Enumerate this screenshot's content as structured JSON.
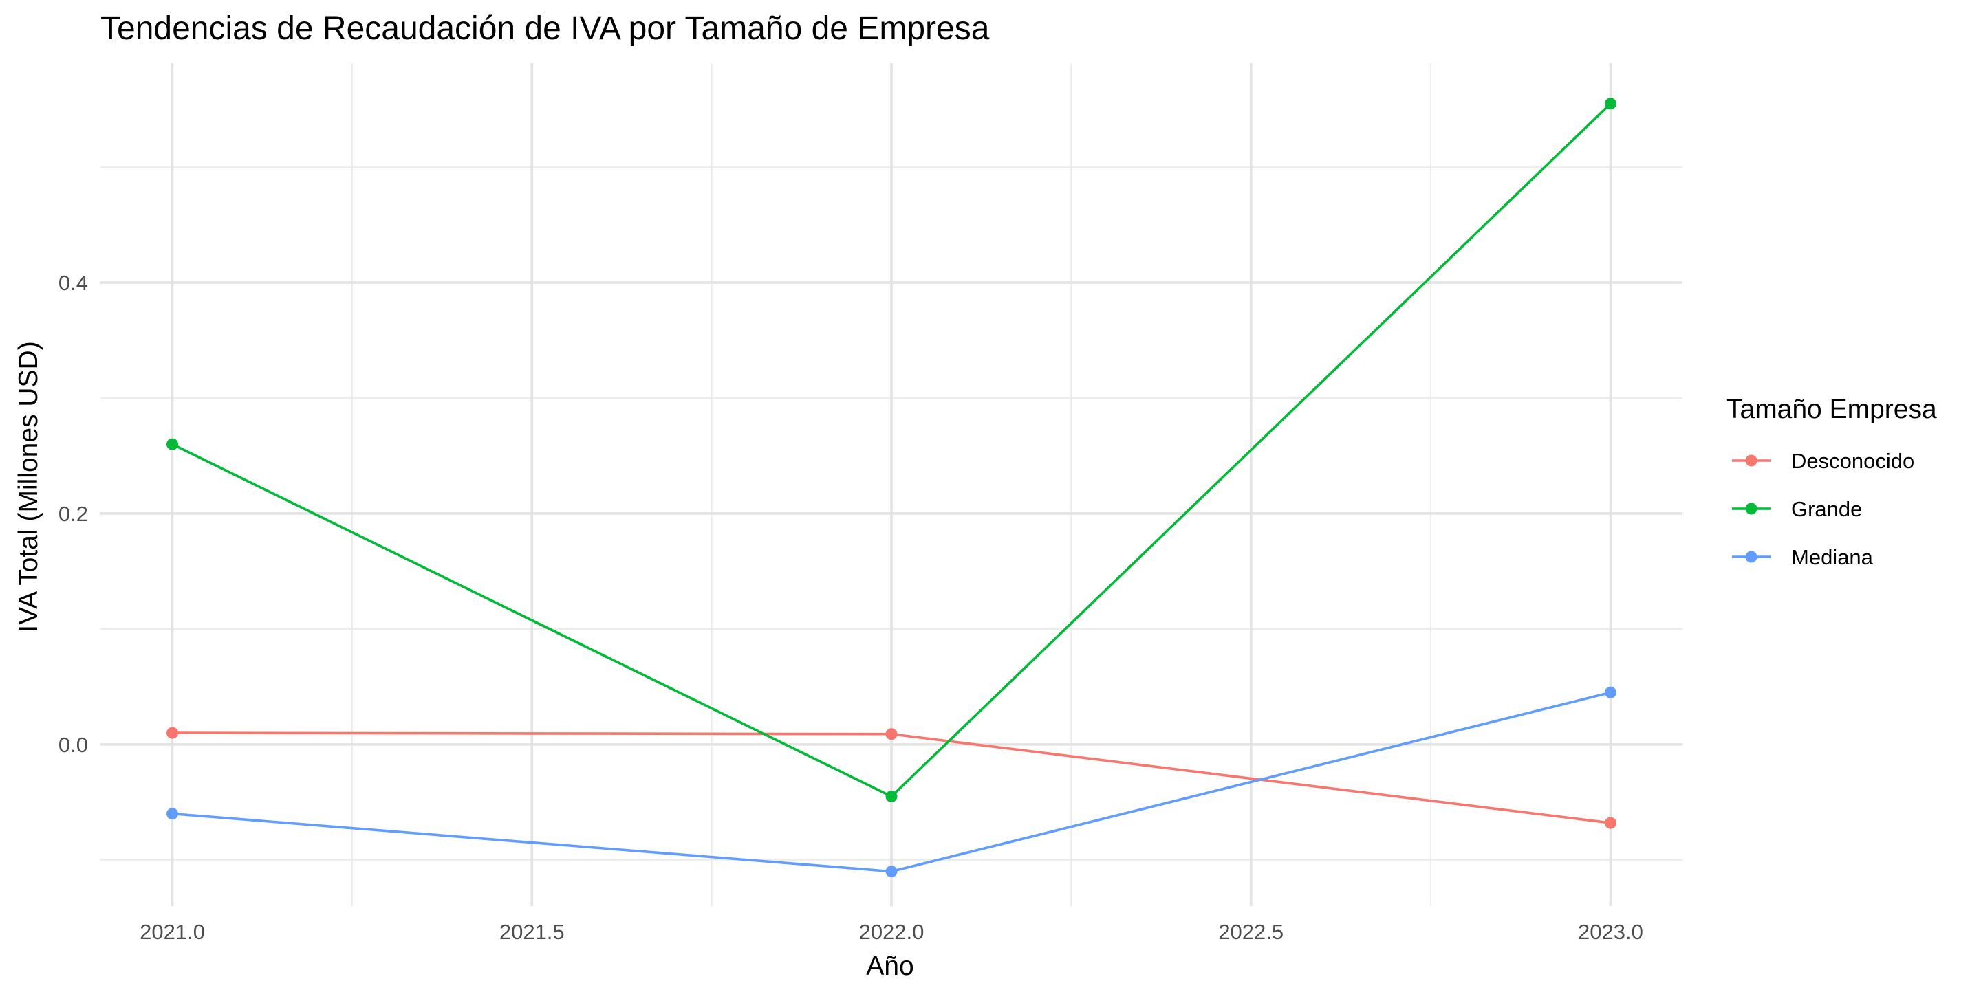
{
  "chart_data": {
    "type": "line",
    "title": "Tendencias de Recaudación de IVA por Tamaño de Empresa",
    "xlabel": "Año",
    "ylabel": "IVA Total (Millones USD)",
    "x": [
      2021,
      2022,
      2023
    ],
    "xlim": [
      2020.9,
      2023.1
    ],
    "ylim": [
      -0.14,
      0.59
    ],
    "x_ticks": [
      2021.0,
      2021.5,
      2022.0,
      2022.5,
      2023.0
    ],
    "x_tick_labels": [
      "2021.0",
      "2021.5",
      "2022.0",
      "2022.5",
      "2023.0"
    ],
    "x_minor_ticks": [
      2021.25,
      2021.75,
      2022.25,
      2022.75
    ],
    "y_ticks": [
      0.0,
      0.2,
      0.4
    ],
    "y_tick_labels": [
      "0.0",
      "0.2",
      "0.4"
    ],
    "y_minor_ticks": [
      -0.1,
      0.1,
      0.3,
      0.5
    ],
    "grid": true,
    "legend": {
      "title": "Tamaño Empresa",
      "position": "right"
    },
    "series": [
      {
        "name": "Desconocido",
        "color": "#F8766D",
        "values": [
          0.01,
          0.009,
          -0.068
        ]
      },
      {
        "name": "Grande",
        "color": "#00BA38",
        "values": [
          0.26,
          -0.045,
          0.555
        ]
      },
      {
        "name": "Mediana",
        "color": "#619CFF",
        "values": [
          -0.06,
          -0.11,
          0.045
        ]
      }
    ]
  }
}
